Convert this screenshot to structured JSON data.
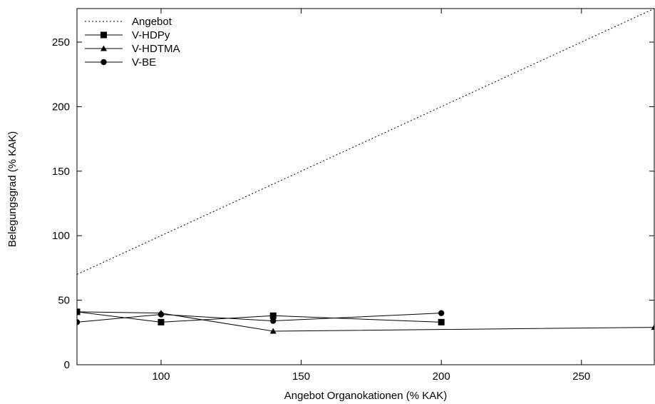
{
  "chart_data": {
    "type": "line",
    "title": "",
    "xlabel": "Angebot Organokationen (% KAK)",
    "ylabel": "Belegungsgrad (% KAK)",
    "xlim": [
      70,
      276
    ],
    "ylim": [
      0,
      276
    ],
    "xticks": [
      100,
      150,
      200,
      250
    ],
    "yticks": [
      0,
      50,
      100,
      150,
      200,
      250
    ],
    "grid": false,
    "legend_position": "top-left",
    "series": [
      {
        "name": "Angebot",
        "style": "dotted",
        "marker": "none",
        "color": "#000000",
        "points": [
          [
            70,
            70
          ],
          [
            276,
            276
          ]
        ]
      },
      {
        "name": "V-HDPy",
        "style": "solid",
        "marker": "square",
        "color": "#000000",
        "points": [
          [
            70,
            41
          ],
          [
            100,
            33
          ],
          [
            140,
            38
          ],
          [
            200,
            33
          ]
        ]
      },
      {
        "name": "V-HDTMA",
        "style": "solid",
        "marker": "triangle",
        "color": "#000000",
        "points": [
          [
            70,
            41
          ],
          [
            100,
            40
          ],
          [
            140,
            26
          ],
          [
            276,
            29
          ]
        ]
      },
      {
        "name": "V-BE",
        "style": "solid",
        "marker": "circle",
        "color": "#000000",
        "points": [
          [
            70,
            33
          ],
          [
            100,
            39
          ],
          [
            140,
            34
          ],
          [
            200,
            40
          ]
        ]
      }
    ]
  }
}
